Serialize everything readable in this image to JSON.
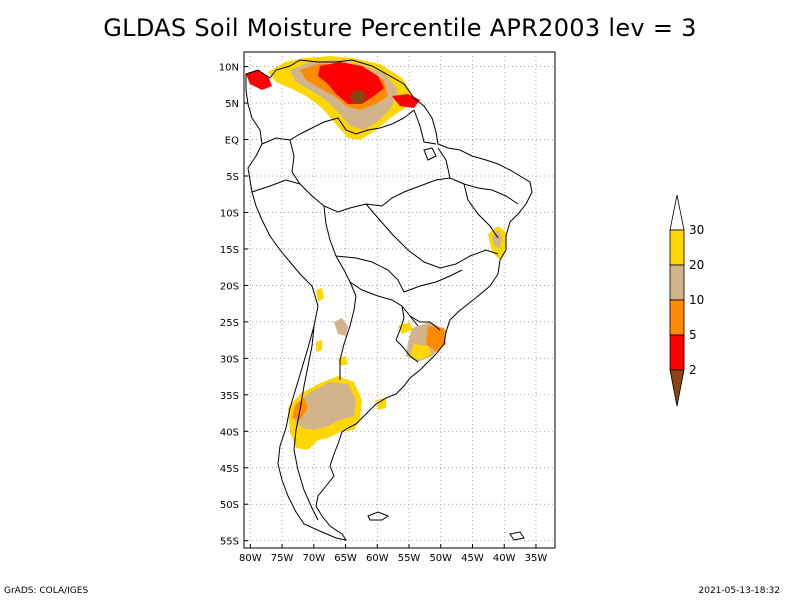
{
  "title": "GLDAS Soil Moisture Percentile APR2003 lev = 3",
  "axes": {
    "lon_ticks": [
      "80W",
      "75W",
      "70W",
      "65W",
      "60W",
      "55W",
      "50W",
      "45W",
      "40W",
      "35W"
    ],
    "lat_ticks": [
      "10N",
      "5N",
      "EQ",
      "5S",
      "10S",
      "15S",
      "20S",
      "25S",
      "30S",
      "35S",
      "40S",
      "45S",
      "50S",
      "55S"
    ],
    "lon_values": [
      -80,
      -75,
      -70,
      -65,
      -60,
      -55,
      -50,
      -45,
      -40,
      -35
    ],
    "lat_values": [
      10,
      5,
      0,
      -5,
      -10,
      -15,
      -20,
      -25,
      -30,
      -35,
      -40,
      -45,
      -50,
      -55
    ],
    "lon_range": [
      -81,
      -32
    ],
    "lat_range": [
      -56,
      12
    ],
    "grid": true
  },
  "colorbar": {
    "labels": [
      "30",
      "20",
      "10",
      "5",
      "2"
    ],
    "colors": [
      "#FFD700",
      "#D2B48C",
      "#FF8C00",
      "#FF0000",
      "#8B4513"
    ],
    "over_color": "#FFFFFF",
    "placement": "right"
  },
  "footer": {
    "left": "GrADS: COLA/IGES",
    "right": "2021-05-13-18:32"
  }
}
